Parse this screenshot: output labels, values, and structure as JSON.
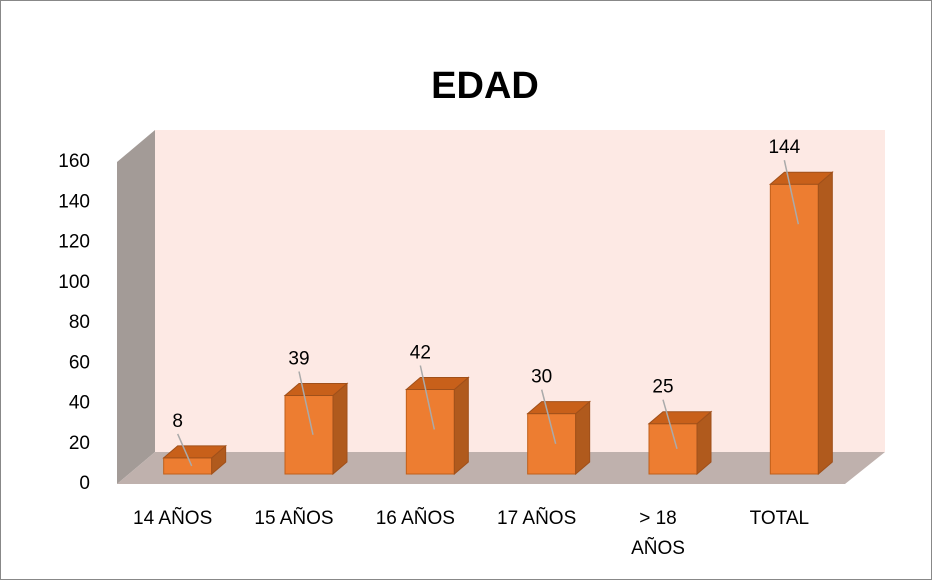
{
  "chart_data": {
    "type": "bar3d",
    "title": "EDAD",
    "categories": [
      "14 AÑOS",
      "15 AÑOS",
      "16 AÑOS",
      "17 AÑOS",
      "> 18 AÑOS",
      "TOTAL"
    ],
    "values": [
      8,
      39,
      42,
      30,
      25,
      144
    ],
    "color": "#ed7d31",
    "ylim": [
      0,
      160
    ],
    "yticks": [
      0,
      20,
      40,
      60,
      80,
      100,
      120,
      140,
      160
    ]
  }
}
